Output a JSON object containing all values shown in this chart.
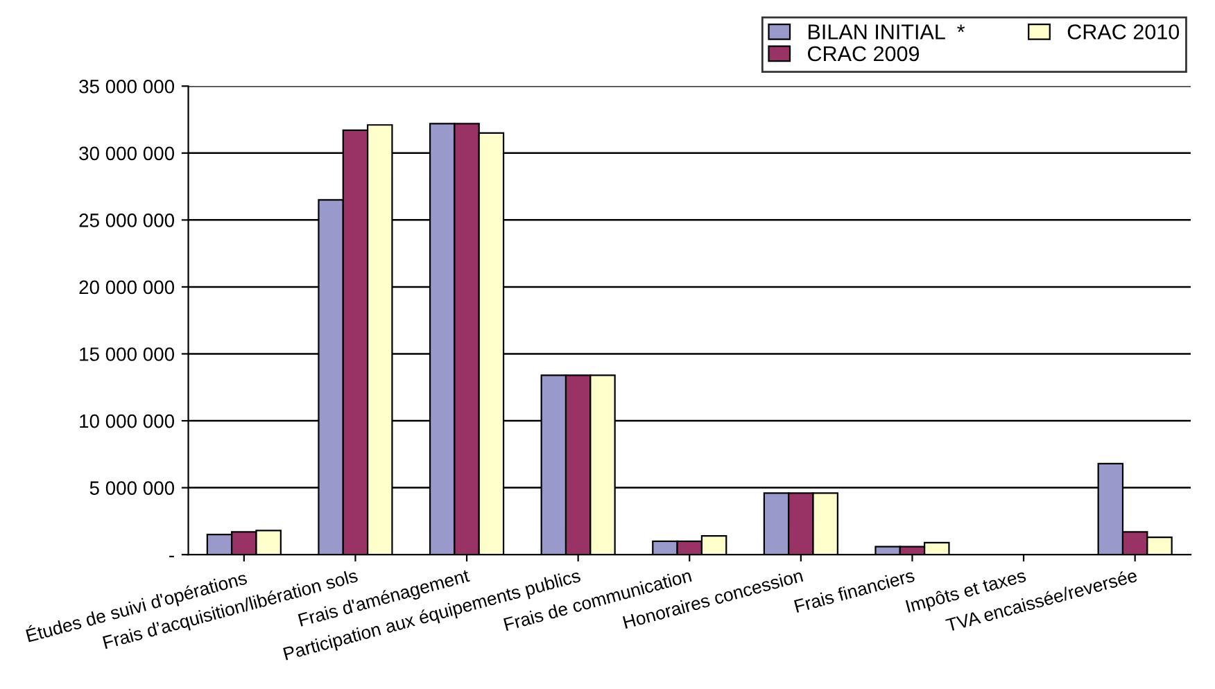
{
  "chart_data": {
    "type": "bar",
    "categories": [
      "Études de suivi d'opérations",
      "Frais d’acquisition/libération sols",
      "Frais d'aménagement",
      "Participation aux équipements publics",
      "Frais de communication",
      "Honoraires concession",
      "Frais financiers",
      "Impôts et taxes",
      "TVA encaissée/reversée"
    ],
    "series": [
      {
        "name": "BILAN INITIAL  *",
        "color": "#9999cc",
        "values": [
          1500000,
          26500000,
          32200000,
          13400000,
          1000000,
          4600000,
          600000,
          null,
          6800000
        ]
      },
      {
        "name": "CRAC 2009",
        "color": "#993366",
        "values": [
          1700000,
          31700000,
          32200000,
          13400000,
          1000000,
          4600000,
          600000,
          null,
          1700000
        ]
      },
      {
        "name": "CRAC 2010",
        "color": "#ffffcc",
        "values": [
          1800000,
          32100000,
          31500000,
          13400000,
          1400000,
          4600000,
          900000,
          null,
          1300000
        ]
      }
    ],
    "ylim": [
      0,
      35000000
    ],
    "yticks": [
      {
        "value": 0,
        "label": "-"
      },
      {
        "value": 5000000,
        "label": "5 000 000"
      },
      {
        "value": 10000000,
        "label": "10 000 000"
      },
      {
        "value": 15000000,
        "label": "15 000 000"
      },
      {
        "value": 20000000,
        "label": "20 000 000"
      },
      {
        "value": 25000000,
        "label": "25 000 000"
      },
      {
        "value": 30000000,
        "label": "30 000 000"
      },
      {
        "value": 35000000,
        "label": "35 000 000"
      }
    ],
    "grid": "y",
    "legend": "top right"
  }
}
